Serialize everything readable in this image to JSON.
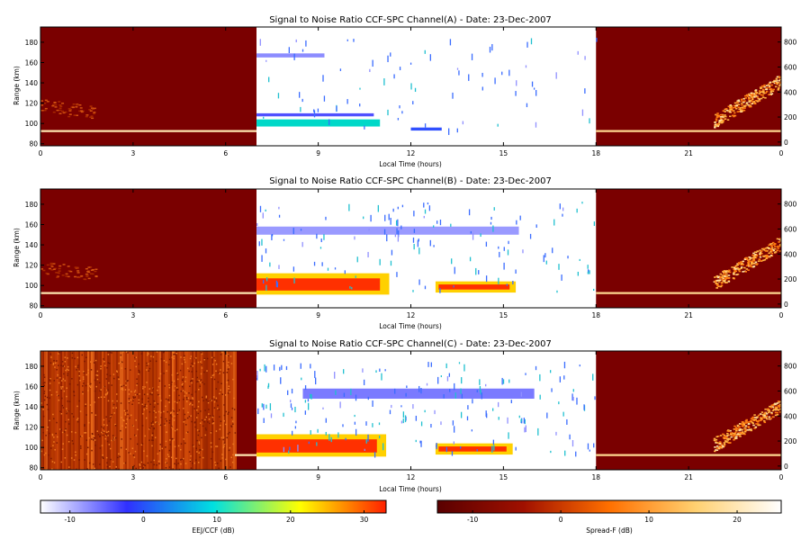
{
  "figure": {
    "colorbars": [
      {
        "label": "EEJ/CCF (dB)",
        "ticks": [
          "-10",
          "0",
          "10",
          "20",
          "30"
        ],
        "range": [
          -14,
          33
        ],
        "stops": [
          "#ffffff",
          "#3030ff",
          "#00e0e0",
          "#ffff00",
          "#ff2000"
        ]
      },
      {
        "label": "Spread-F (dB)",
        "ticks": [
          "-10",
          "0",
          "10",
          "20"
        ],
        "range": [
          -14,
          25
        ],
        "stops": [
          "#5a0000",
          "#a01000",
          "#ff7000",
          "#ffd070",
          "#ffffff"
        ]
      }
    ]
  },
  "chart_data": [
    {
      "type": "heatmap",
      "title": "Signal to Noise Ratio CCF-SPC Channel(A) - Date: 23-Dec-2007",
      "xlabel": "Local Time (hours)",
      "ylabel": "Range (km)",
      "xticks": [
        "0",
        "3",
        "6",
        "9",
        "12",
        "15",
        "18",
        "21",
        "0"
      ],
      "yticks_left": [
        "80",
        "100",
        "120",
        "140",
        "160",
        "180"
      ],
      "yticks_right": [
        "0",
        "200",
        "400",
        "600",
        "800"
      ],
      "xlim": [
        0,
        24
      ],
      "ylim": [
        78,
        195
      ],
      "ylim_right": [
        -30,
        920
      ],
      "night_background": "#7a0000",
      "day_background": "#ffffff",
      "left_texture": "smooth",
      "spreadf_band_until": 7,
      "features": [
        {
          "layer": "night",
          "t0": 0,
          "t1": 7,
          "r0": 91.5,
          "r1": 93.5,
          "color": "#ffe6b0"
        },
        {
          "layer": "night",
          "t0": 18,
          "t1": 24,
          "r0": 91.5,
          "r1": 93.5,
          "color": "#ffd890"
        },
        {
          "layer": "day",
          "t0": 7,
          "t1": 11,
          "r0": 97,
          "r1": 104,
          "color": "#00d8c8"
        },
        {
          "layer": "day",
          "t0": 7,
          "t1": 10.8,
          "r0": 107,
          "r1": 110,
          "color": "#5050ff"
        },
        {
          "layer": "day",
          "t0": 7,
          "t1": 9.2,
          "r0": 165,
          "r1": 169,
          "color": "#8c8cff"
        },
        {
          "layer": "day",
          "t0": 12,
          "t1": 13,
          "r0": 93,
          "r1": 96,
          "color": "#3050ff"
        }
      ],
      "day_speckle": 0.02
    },
    {
      "type": "heatmap",
      "title": "Signal to Noise Ratio CCF-SPC Channel(B) - Date: 23-Dec-2007",
      "xlabel": "Local Time (hours)",
      "ylabel": "Range (km)",
      "xticks": [
        "0",
        "3",
        "6",
        "9",
        "12",
        "15",
        "18",
        "21",
        "0"
      ],
      "yticks_left": [
        "80",
        "100",
        "120",
        "140",
        "160",
        "180"
      ],
      "yticks_right": [
        "0",
        "200",
        "400",
        "600",
        "800"
      ],
      "xlim": [
        0,
        24
      ],
      "ylim": [
        78,
        195
      ],
      "ylim_right": [
        -30,
        920
      ],
      "night_background": "#7a0000",
      "day_background": "#ffffff",
      "left_texture": "smooth",
      "spreadf_band_until": 7,
      "features": [
        {
          "layer": "night",
          "t0": 0,
          "t1": 7,
          "r0": 91.5,
          "r1": 93.5,
          "color": "#ffe6b0"
        },
        {
          "layer": "night",
          "t0": 18,
          "t1": 24,
          "r0": 91.5,
          "r1": 93.5,
          "color": "#ffd890"
        },
        {
          "layer": "day",
          "t0": 7,
          "t1": 11.3,
          "r0": 91,
          "r1": 112,
          "color": "#ffd000"
        },
        {
          "layer": "day",
          "t0": 7,
          "t1": 11.0,
          "r0": 95,
          "r1": 107,
          "color": "#ff3000"
        },
        {
          "layer": "day",
          "t0": 12.8,
          "t1": 15.4,
          "r0": 93,
          "r1": 104,
          "color": "#ffd000"
        },
        {
          "layer": "day",
          "t0": 12.9,
          "t1": 15.2,
          "r0": 96,
          "r1": 101,
          "color": "#ff3000"
        },
        {
          "layer": "day",
          "t0": 7,
          "t1": 15.5,
          "r0": 150,
          "r1": 158,
          "color": "#9a9aff"
        }
      ],
      "day_speckle": 0.035
    },
    {
      "type": "heatmap",
      "title": "Signal to Noise Ratio CCF-SPC Channel(C) - Date: 23-Dec-2007",
      "xlabel": "Local Time (hours)",
      "ylabel": "Range (km)",
      "xticks": [
        "0",
        "3",
        "6",
        "9",
        "12",
        "15",
        "18",
        "21",
        "0"
      ],
      "yticks_left": [
        "80",
        "100",
        "120",
        "140",
        "160",
        "180"
      ],
      "yticks_right": [
        "0",
        "200",
        "400",
        "600",
        "800"
      ],
      "xlim": [
        0,
        24
      ],
      "ylim": [
        78,
        195
      ],
      "ylim_right": [
        -30,
        920
      ],
      "night_background": "#7a0000",
      "day_background": "#ffffff",
      "left_texture": "noise",
      "spreadf_band_until": 6.3,
      "features": [
        {
          "layer": "night",
          "t0": 6.3,
          "t1": 7,
          "r0": 91.5,
          "r1": 93.5,
          "color": "#ffe6b0"
        },
        {
          "layer": "night",
          "t0": 18,
          "t1": 24,
          "r0": 91.5,
          "r1": 93.5,
          "color": "#ffd890"
        },
        {
          "layer": "day",
          "t0": 7,
          "t1": 11.2,
          "r0": 91,
          "r1": 113,
          "color": "#ffd000"
        },
        {
          "layer": "day",
          "t0": 7,
          "t1": 10.9,
          "r0": 95,
          "r1": 108,
          "color": "#ff3000"
        },
        {
          "layer": "day",
          "t0": 12.8,
          "t1": 15.3,
          "r0": 93,
          "r1": 104,
          "color": "#ffd000"
        },
        {
          "layer": "day",
          "t0": 12.9,
          "t1": 15.1,
          "r0": 96,
          "r1": 101,
          "color": "#ff3000"
        },
        {
          "layer": "day",
          "t0": 8.5,
          "t1": 16.0,
          "r0": 148,
          "r1": 158,
          "color": "#7a7aff"
        }
      ],
      "day_speckle": 0.05
    }
  ]
}
